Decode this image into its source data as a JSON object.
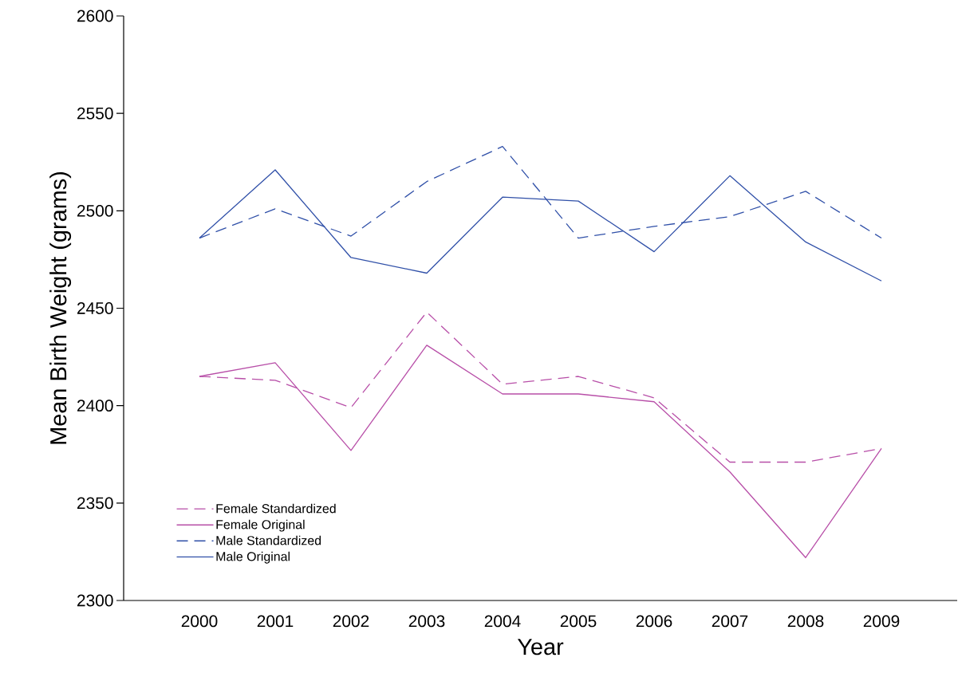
{
  "chart_data": {
    "type": "line",
    "xlabel": "Year",
    "ylabel": "Mean Birth Weight (grams)",
    "categories": [
      "2000",
      "2001",
      "2002",
      "2003",
      "2004",
      "2005",
      "2006",
      "2007",
      "2008",
      "2009"
    ],
    "series": [
      {
        "name": "Female Standardized",
        "color": "#b84fa8",
        "line_style": "dashed",
        "values": [
          2415,
          2413,
          2399,
          2448,
          2411,
          2415,
          2404,
          2371,
          2371,
          2378
        ]
      },
      {
        "name": "Female Original",
        "color": "#b84fa8",
        "line_style": "solid",
        "values": [
          2415,
          2422,
          2377,
          2431,
          2406,
          2406,
          2402,
          2366,
          2322,
          2378
        ]
      },
      {
        "name": "Male Standardized",
        "color": "#3050a8",
        "line_style": "dashed",
        "values": [
          2486,
          2501,
          2487,
          2515,
          2533,
          2486,
          2492,
          2497,
          2510,
          2486
        ]
      },
      {
        "name": "Male Original",
        "color": "#3050a8",
        "line_style": "solid",
        "values": [
          2486,
          2521,
          2476,
          2468,
          2507,
          2505,
          2479,
          2518,
          2484,
          2464
        ]
      }
    ],
    "ylim": [
      2300,
      2600
    ],
    "yticks": [
      2300,
      2350,
      2400,
      2450,
      2500,
      2550,
      2600
    ],
    "grid": false,
    "legend": "bottom left",
    "marker": "none"
  }
}
